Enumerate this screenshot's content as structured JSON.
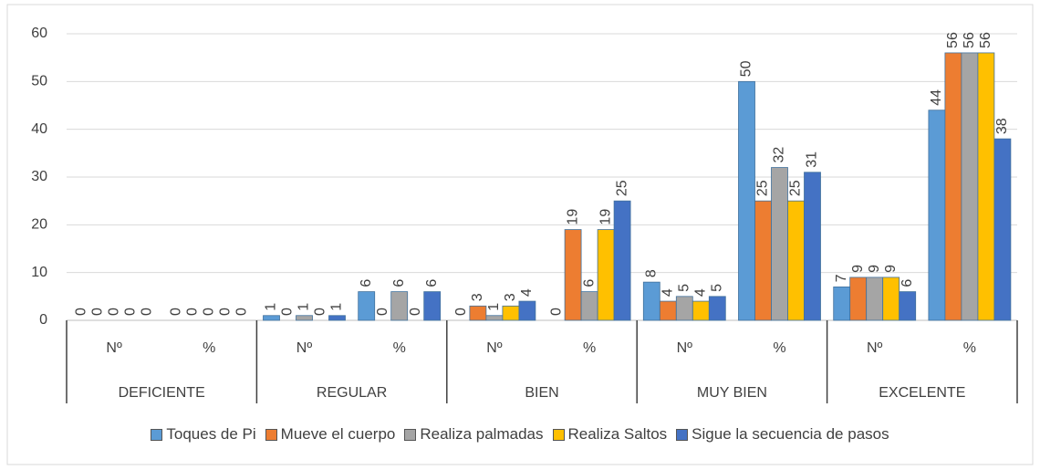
{
  "chart_data": {
    "type": "bar",
    "categories": [
      "Nº",
      "%",
      "Nº",
      "%",
      "Nº",
      "%",
      "Nº",
      "%",
      "Nº",
      "%"
    ],
    "groups": [
      "DEFICIENTE",
      "REGULAR",
      "BIEN",
      "MUY BIEN",
      "EXCELENTE"
    ],
    "series": [
      {
        "name": "Toques de Pi",
        "color": "#5b9bd5",
        "values": [
          0,
          0,
          1,
          6,
          0,
          0,
          8,
          50,
          7,
          44
        ]
      },
      {
        "name": "Mueve el cuerpo",
        "color": "#ed7d31",
        "values": [
          0,
          0,
          0,
          0,
          3,
          19,
          4,
          25,
          9,
          56
        ]
      },
      {
        "name": "Realiza palmadas",
        "color": "#a5a5a5",
        "values": [
          0,
          0,
          1,
          6,
          1,
          6,
          5,
          32,
          9,
          56
        ]
      },
      {
        "name": "Realiza Saltos",
        "color": "#ffc000",
        "values": [
          0,
          0,
          0,
          0,
          3,
          19,
          4,
          25,
          9,
          56
        ]
      },
      {
        "name": "Sigue la secuencia de pasos",
        "color": "#4472c4",
        "values": [
          0,
          0,
          1,
          6,
          4,
          25,
          5,
          31,
          6,
          38
        ]
      }
    ],
    "ylim": [
      0,
      60
    ],
    "yticks": [
      0,
      10,
      20,
      30,
      40,
      50,
      60
    ],
    "grid": true,
    "legend": "bottom"
  }
}
